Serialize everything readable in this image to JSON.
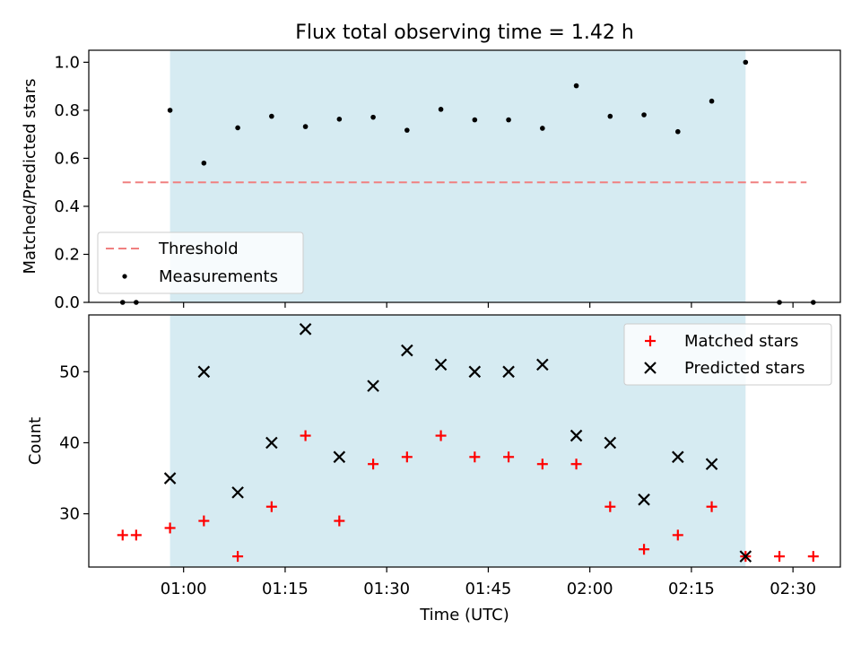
{
  "chart_data": [
    {
      "type": "scatter",
      "title": "Flux total observing time = 1.42 h",
      "xlabel": "",
      "ylabel": "Matched/Predicted stars",
      "ylim": [
        0,
        1.05
      ],
      "yticks": [
        "0.0",
        "0.2",
        "0.4",
        "0.6",
        "0.8",
        "1.0"
      ],
      "xlim": [
        "00:46",
        "02:37"
      ],
      "shaded_region": [
        "00:58",
        "02:23"
      ],
      "shade_color": "#add8e6",
      "threshold": {
        "name": "Threshold",
        "value": 0.5,
        "x_range": [
          "00:51",
          "02:32"
        ],
        "color": "#f08080"
      },
      "series": [
        {
          "name": "Measurements",
          "color": "#000000",
          "x": [
            "00:51",
            "00:53",
            "00:58",
            "01:03",
            "01:08",
            "01:13",
            "01:18",
            "01:23",
            "01:28",
            "01:33",
            "01:38",
            "01:43",
            "01:48",
            "01:53",
            "01:58",
            "02:03",
            "02:08",
            "02:13",
            "02:18",
            "02:23",
            "02:28",
            "02:33"
          ],
          "y": [
            0.0,
            0.0,
            0.8,
            0.58,
            0.727,
            0.775,
            0.732,
            0.763,
            0.771,
            0.717,
            0.804,
            0.76,
            0.76,
            0.725,
            0.902,
            0.775,
            0.781,
            0.711,
            0.838,
            1.0,
            0.0,
            0.0
          ]
        }
      ],
      "legend_position": "lower-left"
    },
    {
      "type": "scatter",
      "title": "",
      "xlabel": "Time (UTC)",
      "ylabel": "Count",
      "ylim": [
        22.5,
        58
      ],
      "yticks": [
        "30",
        "40",
        "50"
      ],
      "xticks": [
        "01:00",
        "01:15",
        "01:30",
        "01:45",
        "02:00",
        "02:15",
        "02:30"
      ],
      "xlim": [
        "00:46",
        "02:37"
      ],
      "shaded_region": [
        "00:58",
        "02:23"
      ],
      "series": [
        {
          "name": "Matched stars",
          "marker": "plus",
          "color": "#ff0000",
          "x": [
            "00:51",
            "00:53",
            "00:58",
            "01:03",
            "01:08",
            "01:13",
            "01:18",
            "01:23",
            "01:28",
            "01:33",
            "01:38",
            "01:43",
            "01:48",
            "01:53",
            "01:58",
            "02:03",
            "02:08",
            "02:13",
            "02:18",
            "02:23",
            "02:28",
            "02:33"
          ],
          "y": [
            27,
            27,
            28,
            29,
            24,
            31,
            41,
            29,
            37,
            38,
            41,
            38,
            38,
            37,
            37,
            31,
            25,
            27,
            31,
            24,
            24,
            24
          ]
        },
        {
          "name": "Predicted stars",
          "marker": "x",
          "color": "#000000",
          "x": [
            "00:58",
            "01:03",
            "01:08",
            "01:13",
            "01:18",
            "01:23",
            "01:28",
            "01:33",
            "01:38",
            "01:43",
            "01:48",
            "01:53",
            "01:58",
            "02:03",
            "02:08",
            "02:13",
            "02:18",
            "02:23"
          ],
          "y": [
            35,
            50,
            33,
            40,
            56,
            38,
            48,
            53,
            51,
            50,
            50,
            51,
            41,
            40,
            32,
            38,
            37,
            24
          ]
        }
      ],
      "legend_position": "upper-right"
    }
  ]
}
